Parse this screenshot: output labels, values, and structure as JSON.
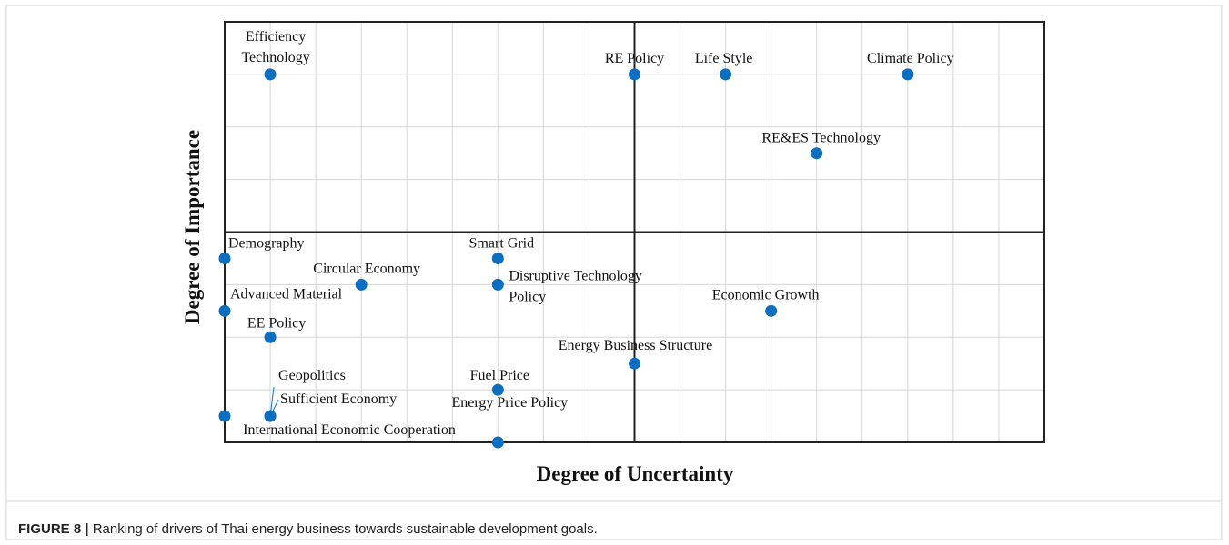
{
  "chart_data": {
    "type": "scatter",
    "xlabel": "Degree of Uncertainty",
    "ylabel": "Degree of Importance",
    "xlim": [
      0,
      18
    ],
    "ylim": [
      0,
      8
    ],
    "xticks": [
      0,
      1,
      2,
      3,
      4,
      5,
      6,
      7,
      8,
      9,
      10,
      11,
      12,
      13,
      14,
      15,
      16,
      17,
      18
    ],
    "yticks": [
      0,
      1,
      2,
      3,
      4,
      5,
      6,
      7,
      8
    ],
    "grid": true,
    "quadrant_lines": {
      "x": 9,
      "y": 4
    },
    "color": "#0b6fc1",
    "series": [
      {
        "labels": [
          [
            "Efficiency",
            "Technology"
          ],
          [
            "RE Policy"
          ],
          [
            "Life Style"
          ],
          [
            "Climate Policy"
          ],
          [
            "RE&ES Technology"
          ],
          [
            "Demography"
          ],
          [
            "Smart Grid"
          ],
          [
            "Circular Economy"
          ],
          [
            "Disruptive Technology",
            "Policy"
          ],
          [
            "Advanced Material"
          ],
          [
            "Economic Growth"
          ],
          [
            "EE Policy"
          ],
          [
            "Energy Business Structure"
          ],
          [
            "Fuel Price"
          ],
          [
            "Geopolitics"
          ],
          [
            "Sufficient Economy"
          ],
          [
            "International Economic Cooperation"
          ],
          [
            "Energy Price Policy"
          ]
        ],
        "x": [
          1,
          9,
          11,
          15,
          13,
          0,
          6,
          3,
          6,
          0,
          12,
          1,
          9,
          6,
          1,
          1,
          0,
          6
        ],
        "values": [
          7,
          7,
          7,
          7,
          5.5,
          3.5,
          3.5,
          3,
          3,
          2.5,
          2.5,
          2,
          1.5,
          1,
          0.5,
          0.5,
          0.5,
          0
        ]
      }
    ]
  },
  "caption": {
    "prefix": "FIGURE 8 |",
    "text": "Ranking of drivers of Thai energy business towards sustainable development goals."
  }
}
